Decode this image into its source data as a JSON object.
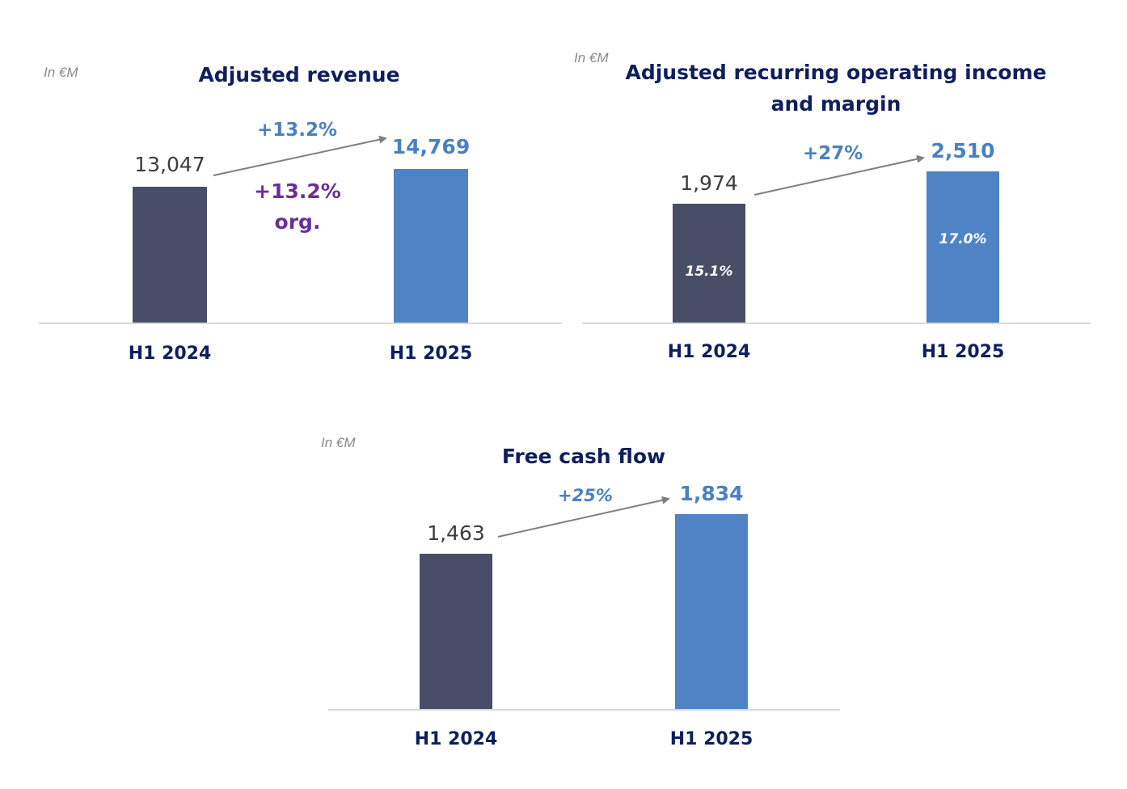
{
  "chart_data": [
    {
      "type": "bar",
      "title": "Adjusted revenue",
      "unit_label": "In €M",
      "categories": [
        "H1 2024",
        "H1 2025"
      ],
      "values": [
        13047,
        14769
      ],
      "value_labels": [
        "13,047",
        "14,769"
      ],
      "growth_label": "+13.2%",
      "organic_growth_label": "+13.2%",
      "organic_suffix": "org.",
      "colors": [
        "#484e68",
        "#4f83c6"
      ]
    },
    {
      "type": "bar",
      "title": "Adjusted recurring operating income and margin",
      "unit_label": "In €M",
      "categories": [
        "H1 2024",
        "H1 2025"
      ],
      "values": [
        1974,
        2510
      ],
      "value_labels": [
        "1,974",
        "2,510"
      ],
      "margins": [
        "15.1%",
        "17.0%"
      ],
      "growth_label": "+27%",
      "colors": [
        "#484e68",
        "#4f83c6"
      ]
    },
    {
      "type": "bar",
      "title": "Free cash flow",
      "unit_label": "In €M",
      "categories": [
        "H1 2024",
        "H1 2025"
      ],
      "values": [
        1463,
        1834
      ],
      "value_labels": [
        "1,463",
        "1,834"
      ],
      "growth_label": "+25%",
      "colors": [
        "#484e68",
        "#4f83c6"
      ]
    }
  ]
}
